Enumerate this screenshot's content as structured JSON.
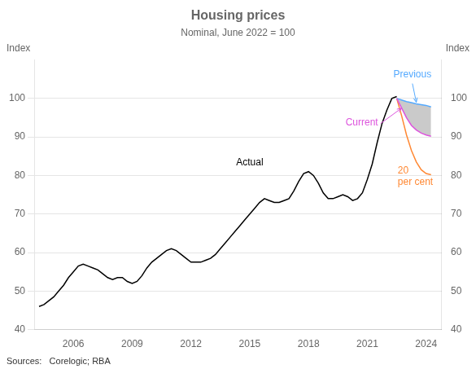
{
  "chart_data": {
    "type": "line",
    "title": "Housing prices",
    "subtitle": "Nominal, June 2022 = 100",
    "ylabel": "Index",
    "y2label": "Index",
    "source": "Sources:   Corelogic; RBA",
    "xlim": [
      2004.0,
      2024.8
    ],
    "xticks": [
      2006,
      2009,
      2012,
      2015,
      2018,
      2021,
      2024
    ],
    "ylim": [
      40,
      110
    ],
    "yticks": [
      40,
      50,
      60,
      70,
      80,
      90,
      100
    ],
    "y2lim": [
      40,
      110
    ],
    "y2ticks": [
      40,
      50,
      60,
      70,
      80,
      90,
      100
    ],
    "grid": "y",
    "series": [
      {
        "type": "band",
        "color": "#b8b8b8",
        "x": [
          2022.5,
          2022.75,
          2023.0,
          2023.25,
          2023.5,
          2023.75,
          2024.0,
          2024.25
        ],
        "lower": [
          100.0,
          97.5,
          95.0,
          93.0,
          91.8,
          91.0,
          90.5,
          90.2
        ],
        "upper": [
          100.0,
          99.6,
          99.2,
          98.9,
          98.6,
          98.4,
          98.2,
          97.8
        ]
      },
      {
        "type": "line",
        "color": "#000000",
        "x": [
          2004.25,
          2004.5,
          2004.75,
          2005.0,
          2005.25,
          2005.5,
          2005.75,
          2006.0,
          2006.25,
          2006.5,
          2006.75,
          2007.0,
          2007.25,
          2007.5,
          2007.75,
          2008.0,
          2008.25,
          2008.5,
          2008.75,
          2009.0,
          2009.25,
          2009.5,
          2009.75,
          2010.0,
          2010.25,
          2010.5,
          2010.75,
          2011.0,
          2011.25,
          2011.5,
          2011.75,
          2012.0,
          2012.25,
          2012.5,
          2012.75,
          2013.0,
          2013.25,
          2013.5,
          2013.75,
          2014.0,
          2014.25,
          2014.5,
          2014.75,
          2015.0,
          2015.25,
          2015.5,
          2015.75,
          2016.0,
          2016.25,
          2016.5,
          2016.75,
          2017.0,
          2017.25,
          2017.5,
          2017.75,
          2018.0,
          2018.25,
          2018.5,
          2018.75,
          2019.0,
          2019.25,
          2019.5,
          2019.75,
          2020.0,
          2020.25,
          2020.5,
          2020.75,
          2021.0,
          2021.25,
          2021.5,
          2021.75,
          2022.0,
          2022.25,
          2022.5
        ],
        "values": [
          46.0,
          46.5,
          47.5,
          48.5,
          50.0,
          51.5,
          53.5,
          55.0,
          56.5,
          57.0,
          56.5,
          56.0,
          55.5,
          54.5,
          53.5,
          53.0,
          53.5,
          53.5,
          52.5,
          52.0,
          52.5,
          54.0,
          56.0,
          57.5,
          58.5,
          59.5,
          60.5,
          61.0,
          60.5,
          59.5,
          58.5,
          57.5,
          57.5,
          57.5,
          58.0,
          58.5,
          59.5,
          61.0,
          62.5,
          64.0,
          65.5,
          67.0,
          68.5,
          70.0,
          71.5,
          73.0,
          74.0,
          73.5,
          73.0,
          73.0,
          73.5,
          74.0,
          76.0,
          78.5,
          80.5,
          81.0,
          80.0,
          78.0,
          75.5,
          74.0,
          74.0,
          74.5,
          75.0,
          74.5,
          73.5,
          74.0,
          75.5,
          79.0,
          83.0,
          88.5,
          93.5,
          97.0,
          100.0,
          100.5
        ]
      },
      {
        "type": "line",
        "color": "#ff8833",
        "x": [
          2022.5,
          2022.75,
          2023.0,
          2023.25,
          2023.5,
          2023.75,
          2024.0,
          2024.25
        ],
        "values": [
          100.0,
          95.5,
          90.5,
          86.5,
          83.5,
          81.5,
          80.5,
          80.2
        ]
      },
      {
        "type": "line",
        "color": "#55aaff",
        "x": [
          2022.5,
          2022.75,
          2023.0,
          2023.25,
          2023.5,
          2023.75,
          2024.0,
          2024.25
        ],
        "values": [
          100.0,
          99.6,
          99.2,
          98.9,
          98.6,
          98.4,
          98.2,
          97.8
        ]
      },
      {
        "type": "line",
        "color": "#dd55dd",
        "x": [
          2022.5,
          2022.75,
          2023.0,
          2023.25,
          2023.5,
          2023.75,
          2024.0,
          2024.25
        ],
        "values": [
          100.0,
          97.5,
          95.0,
          93.0,
          91.8,
          91.0,
          90.5,
          90.2
        ]
      }
    ],
    "annotations": [
      {
        "text": "Actual",
        "x": 2015.0,
        "y": 84.5,
        "color": "#000000"
      },
      {
        "text": "Previous",
        "x": 2023.3,
        "y": 104.5,
        "color": "#55aaff",
        "arrow_to": [
          2023.5,
          99.0
        ]
      },
      {
        "text": "Current",
        "x": 2021.55,
        "y": 93.5,
        "color": "#dd55dd",
        "arrow_to": [
          2022.75,
          97.5
        ]
      },
      {
        "text": "20\nper cent",
        "x": 2023.45,
        "y": 82.5,
        "color": "#ff8833"
      }
    ]
  }
}
